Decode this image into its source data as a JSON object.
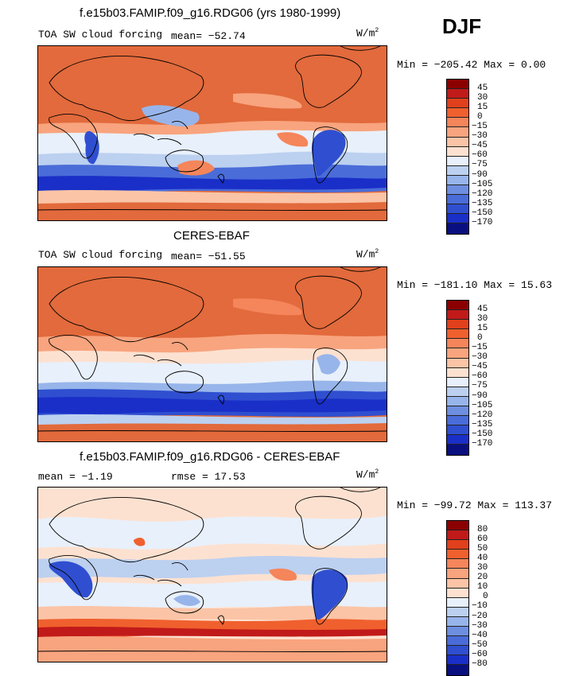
{
  "season": "DJF",
  "colors": {
    "above": "#e26a3c",
    "deep_warm": "#7a0a0a",
    "light_warm": "#fbd2b8",
    "neutral": "#f0f4fa",
    "light_cool": "#bcd0f0",
    "mid_cool": "#6e8ee0",
    "deep_cool": "#1a2fc8"
  },
  "panels": [
    {
      "title": "f.e15b03.FAMIP.f09_g16.RDG06 (yrs 1980-1999)",
      "left_label": "TOA SW cloud forcing",
      "stat1": "mean= −52.74",
      "stat2": "",
      "units": "W/m",
      "units_sup": "2",
      "minmax": "Min = −205.42 Max =   0.00",
      "colorbar": {
        "levels": [
          "45",
          "30",
          "15",
          "0",
          "−15",
          "−30",
          "−45",
          "−60",
          "−75",
          "−90",
          "−105",
          "−120",
          "−135",
          "−150",
          "−170"
        ],
        "colors": [
          "#8b0000",
          "#c11a1a",
          "#e0401c",
          "#f0602e",
          "#f5855a",
          "#f8a47e",
          "#fbc4a6",
          "#fde1d0",
          "#e8f0fb",
          "#bcd0f0",
          "#97b5ea",
          "#6e8ee0",
          "#4a6cd8",
          "#2f4fd0",
          "#1a2fc8",
          "#0a0f80"
        ]
      }
    },
    {
      "title": "CERES-EBAF",
      "left_label": "TOA SW cloud forcing",
      "stat1": "mean= −51.55",
      "stat2": "",
      "units": "W/m",
      "units_sup": "2",
      "minmax": "Min = −181.10 Max =  15.63",
      "colorbar": {
        "levels": [
          "45",
          "30",
          "15",
          "0",
          "−15",
          "−30",
          "−45",
          "−60",
          "−75",
          "−90",
          "−105",
          "−120",
          "−135",
          "−150",
          "−170"
        ],
        "colors": [
          "#8b0000",
          "#c11a1a",
          "#e0401c",
          "#f0602e",
          "#f5855a",
          "#f8a47e",
          "#fbc4a6",
          "#fde1d0",
          "#e8f0fb",
          "#bcd0f0",
          "#97b5ea",
          "#6e8ee0",
          "#4a6cd8",
          "#2f4fd0",
          "#1a2fc8",
          "#0a0f80"
        ]
      }
    },
    {
      "title": "f.e15b03.FAMIP.f09_g16.RDG06 - CERES-EBAF",
      "left_label": "mean =   −1.19",
      "stat1": "rmse =   17.53",
      "stat2": "",
      "units": "W/m",
      "units_sup": "2",
      "minmax": "Min = −99.72 Max = 113.37",
      "colorbar": {
        "levels": [
          "80",
          "60",
          "50",
          "40",
          "30",
          "20",
          "10",
          "0",
          "−10",
          "−20",
          "−30",
          "−40",
          "−50",
          "−60",
          "−80"
        ],
        "colors": [
          "#8b0000",
          "#c11a1a",
          "#e0401c",
          "#f0602e",
          "#f5855a",
          "#f8a47e",
          "#fbc4a6",
          "#fde1d0",
          "#e8f0fb",
          "#bcd0f0",
          "#97b5ea",
          "#6e8ee0",
          "#4a6cd8",
          "#2f4fd0",
          "#1a2fc8",
          "#0a0f80"
        ]
      }
    }
  ]
}
